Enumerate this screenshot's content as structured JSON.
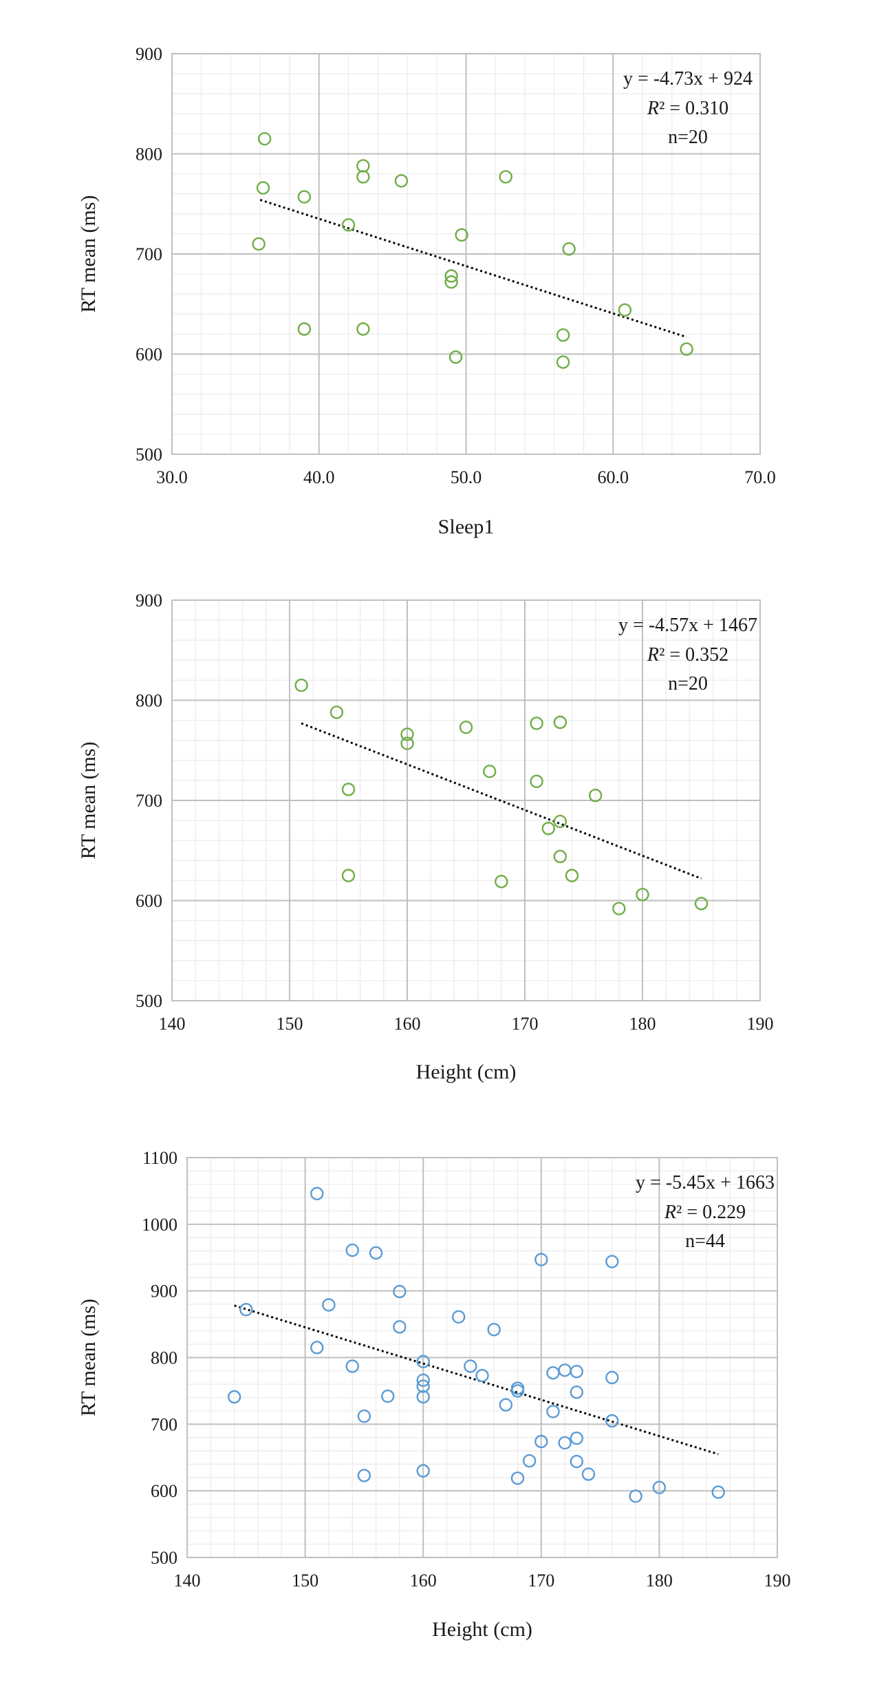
{
  "chart_data": [
    {
      "type": "scatter",
      "xlabel": "Sleep1",
      "ylabel": "RT mean (ms)",
      "xlim": [
        30,
        70
      ],
      "ylim": [
        500,
        900
      ],
      "x_ticks": [
        "30.0",
        "40.0",
        "50.0",
        "60.0",
        "70.0"
      ],
      "y_ticks": [
        "500",
        "600",
        "700",
        "800",
        "900"
      ],
      "grid": true,
      "marker_color": "#70ad47",
      "annotation": {
        "equation": "y = -4.73x + 924",
        "r2_label": "R",
        "r2_value": "² = 0.310",
        "n": "n=20"
      },
      "trendline": {
        "x": [
          36.0,
          65.0
        ],
        "y": [
          754,
          617
        ]
      },
      "points": [
        {
          "x": 36.3,
          "y": 815
        },
        {
          "x": 36.2,
          "y": 766
        },
        {
          "x": 35.9,
          "y": 710
        },
        {
          "x": 39.0,
          "y": 757
        },
        {
          "x": 39.0,
          "y": 625
        },
        {
          "x": 42.0,
          "y": 729
        },
        {
          "x": 43.0,
          "y": 788
        },
        {
          "x": 43.0,
          "y": 777
        },
        {
          "x": 43.0,
          "y": 625
        },
        {
          "x": 45.6,
          "y": 773
        },
        {
          "x": 49.0,
          "y": 678
        },
        {
          "x": 49.0,
          "y": 672
        },
        {
          "x": 49.3,
          "y": 597
        },
        {
          "x": 49.7,
          "y": 719
        },
        {
          "x": 52.7,
          "y": 777
        },
        {
          "x": 56.6,
          "y": 619
        },
        {
          "x": 56.6,
          "y": 592
        },
        {
          "x": 57.0,
          "y": 705
        },
        {
          "x": 60.8,
          "y": 644
        },
        {
          "x": 65.0,
          "y": 605
        }
      ]
    },
    {
      "type": "scatter",
      "xlabel": "Height (cm)",
      "ylabel": "RT mean (ms)",
      "xlim": [
        140,
        190
      ],
      "ylim": [
        500,
        900
      ],
      "x_ticks": [
        "140",
        "150",
        "160",
        "170",
        "180",
        "190"
      ],
      "y_ticks": [
        "500",
        "600",
        "700",
        "800",
        "900"
      ],
      "grid": true,
      "marker_color": "#70ad47",
      "annotation": {
        "equation": "y = -4.57x + 1467",
        "r2_label": "R",
        "r2_value": "² = 0.352",
        "n": "n=20"
      },
      "trendline": {
        "x": [
          151,
          185
        ],
        "y": [
          777,
          622
        ]
      },
      "points": [
        {
          "x": 151,
          "y": 815
        },
        {
          "x": 154,
          "y": 788
        },
        {
          "x": 155,
          "y": 711
        },
        {
          "x": 155,
          "y": 625
        },
        {
          "x": 160,
          "y": 766
        },
        {
          "x": 160,
          "y": 757
        },
        {
          "x": 165,
          "y": 773
        },
        {
          "x": 167,
          "y": 729
        },
        {
          "x": 168,
          "y": 619
        },
        {
          "x": 171,
          "y": 777
        },
        {
          "x": 171,
          "y": 719
        },
        {
          "x": 172,
          "y": 672
        },
        {
          "x": 173,
          "y": 778
        },
        {
          "x": 173,
          "y": 679
        },
        {
          "x": 173,
          "y": 644
        },
        {
          "x": 174,
          "y": 625
        },
        {
          "x": 176,
          "y": 705
        },
        {
          "x": 178,
          "y": 592
        },
        {
          "x": 180,
          "y": 606
        },
        {
          "x": 185,
          "y": 597
        }
      ]
    },
    {
      "type": "scatter",
      "xlabel": "Height (cm)",
      "ylabel": "RT mean (ms)",
      "xlim": [
        140,
        190
      ],
      "ylim": [
        500,
        1100
      ],
      "x_ticks": [
        "140",
        "150",
        "160",
        "170",
        "180",
        "190"
      ],
      "y_ticks": [
        "500",
        "600",
        "700",
        "800",
        "900",
        "1000",
        "1100"
      ],
      "grid": true,
      "marker_color": "#5b9bd5",
      "annotation": {
        "equation": "y = -5.45x + 1663",
        "r2_label": "R",
        "r2_value": "² = 0.229",
        "n": "n=44"
      },
      "trendline": {
        "x": [
          144,
          185
        ],
        "y": [
          878,
          655
        ]
      },
      "points": [
        {
          "x": 144,
          "y": 741
        },
        {
          "x": 145,
          "y": 872
        },
        {
          "x": 151,
          "y": 1046
        },
        {
          "x": 151,
          "y": 815
        },
        {
          "x": 152,
          "y": 879
        },
        {
          "x": 154,
          "y": 961
        },
        {
          "x": 154,
          "y": 787
        },
        {
          "x": 155,
          "y": 712
        },
        {
          "x": 155,
          "y": 623
        },
        {
          "x": 156,
          "y": 957
        },
        {
          "x": 157,
          "y": 742
        },
        {
          "x": 158,
          "y": 899
        },
        {
          "x": 158,
          "y": 846
        },
        {
          "x": 160,
          "y": 794
        },
        {
          "x": 160,
          "y": 766
        },
        {
          "x": 160,
          "y": 757
        },
        {
          "x": 160,
          "y": 741
        },
        {
          "x": 160,
          "y": 630
        },
        {
          "x": 163,
          "y": 861
        },
        {
          "x": 164,
          "y": 787
        },
        {
          "x": 165,
          "y": 773
        },
        {
          "x": 166,
          "y": 842
        },
        {
          "x": 167,
          "y": 729
        },
        {
          "x": 168,
          "y": 754
        },
        {
          "x": 168,
          "y": 750
        },
        {
          "x": 168,
          "y": 619
        },
        {
          "x": 169,
          "y": 645
        },
        {
          "x": 170,
          "y": 947
        },
        {
          "x": 170,
          "y": 674
        },
        {
          "x": 171,
          "y": 777
        },
        {
          "x": 171,
          "y": 719
        },
        {
          "x": 172,
          "y": 781
        },
        {
          "x": 172,
          "y": 672
        },
        {
          "x": 173,
          "y": 779
        },
        {
          "x": 173,
          "y": 748
        },
        {
          "x": 173,
          "y": 679
        },
        {
          "x": 173,
          "y": 644
        },
        {
          "x": 174,
          "y": 625
        },
        {
          "x": 176,
          "y": 944
        },
        {
          "x": 176,
          "y": 770
        },
        {
          "x": 176,
          "y": 705
        },
        {
          "x": 178,
          "y": 592
        },
        {
          "x": 180,
          "y": 605
        },
        {
          "x": 185,
          "y": 598
        }
      ]
    }
  ]
}
